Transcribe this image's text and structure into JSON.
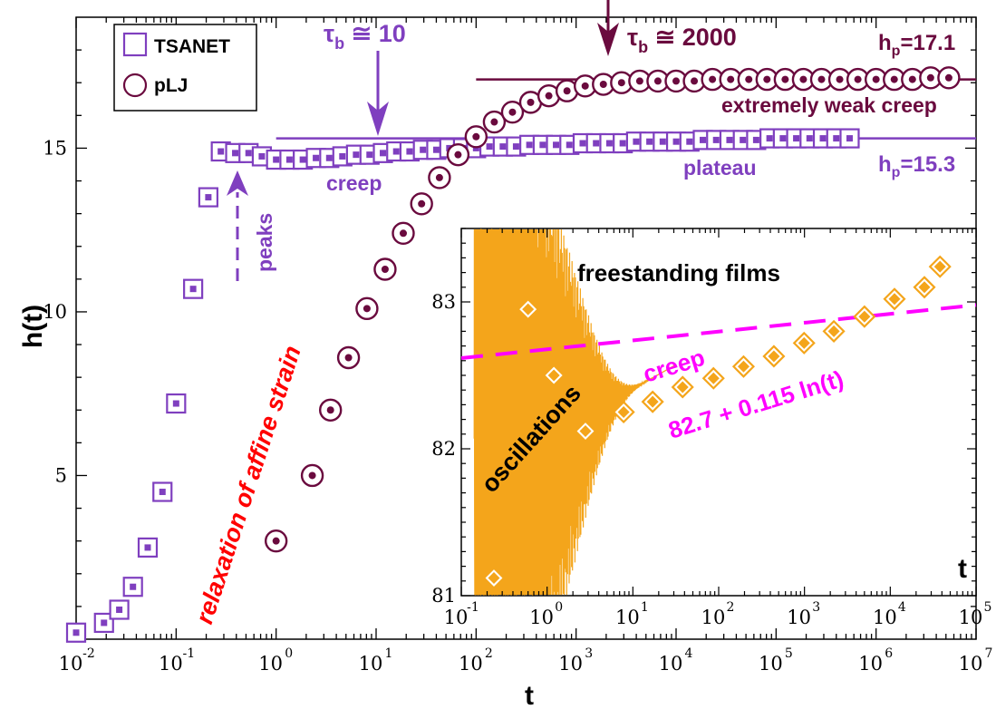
{
  "chart_data": [
    {
      "type": "scatter",
      "title": "",
      "xlabel": "t",
      "ylabel": "h(t)",
      "xscale": "log",
      "xlim": [
        0.01,
        10000000
      ],
      "ylim": [
        0,
        19
      ],
      "x_tick_labels": [
        {
          "base": "10",
          "exp": "-2",
          "v": 0.01
        },
        {
          "base": "10",
          "exp": "-1",
          "v": 0.1
        },
        {
          "base": "10",
          "exp": "0",
          "v": 1
        },
        {
          "base": "10",
          "exp": "1",
          "v": 10
        },
        {
          "base": "10",
          "exp": "2",
          "v": 100
        },
        {
          "base": "10",
          "exp": "3",
          "v": 1000
        },
        {
          "base": "10",
          "exp": "4",
          "v": 10000
        },
        {
          "base": "10",
          "exp": "5",
          "v": 100000
        },
        {
          "base": "10",
          "exp": "6",
          "v": 1000000
        },
        {
          "base": "10",
          "exp": "7",
          "v": 10000000
        }
      ],
      "y_ticks": [
        5,
        10,
        15
      ],
      "y_tick_labels": [
        "5",
        "10",
        "15"
      ],
      "legend": {
        "placement": "top-left",
        "entries": [
          {
            "label": "TSANET",
            "marker": "square",
            "color": "#7f3fbf"
          },
          {
            "label": "pLJ",
            "marker": "circle",
            "color": "#6a0a3e"
          }
        ]
      },
      "series": [
        {
          "name": "TSANET",
          "marker": "square",
          "color": "#7f3fbf",
          "x": [
            0.01,
            0.019,
            0.027,
            0.037,
            0.052,
            0.073,
            0.1,
            0.148,
            0.21,
            0.28,
            0.39,
            0.53,
            0.72,
            1.0,
            1.36,
            1.85,
            2.5,
            3.4,
            4.6,
            6.3,
            8.6,
            11.7,
            15.9,
            21.6,
            29.4,
            40,
            54,
            74,
            100,
            136,
            185,
            251,
            341,
            464,
            630,
            857,
            1165,
            1584,
            2154,
            2929,
            3983,
            5415,
            7363,
            10012,
            13613,
            18510,
            25168,
            34222,
            46533,
            63272,
            86033,
            116983,
            159068,
            216292,
            294101,
            399900,
            543756
          ],
          "values": [
            0.2,
            0.5,
            0.9,
            1.6,
            2.8,
            4.5,
            7.2,
            10.7,
            13.5,
            14.9,
            14.85,
            14.85,
            14.75,
            14.65,
            14.65,
            14.65,
            14.7,
            14.7,
            14.75,
            14.8,
            14.8,
            14.85,
            14.9,
            14.9,
            14.95,
            14.95,
            15.0,
            15.0,
            15.0,
            15.05,
            15.05,
            15.05,
            15.1,
            15.1,
            15.1,
            15.1,
            15.15,
            15.15,
            15.15,
            15.15,
            15.2,
            15.2,
            15.2,
            15.2,
            15.2,
            15.25,
            15.25,
            15.25,
            15.25,
            15.25,
            15.3,
            15.3,
            15.3,
            15.3,
            15.3,
            15.3,
            15.3
          ]
        },
        {
          "name": "pLJ",
          "marker": "circle",
          "color": "#6a0a3e",
          "x": [
            1.0,
            2.3,
            3.5,
            5.3,
            8.1,
            12.3,
            18.7,
            28.5,
            43,
            66,
            100,
            152,
            231,
            351,
            534,
            811,
            1233,
            1874,
            2848,
            4329,
            6579,
            10000,
            15199,
            23101,
            35112,
            53367,
            81113,
            123285,
            187382,
            284804,
            432876,
            657933,
            1000000,
            1519911,
            2310130,
            3511192,
            5336699
          ],
          "values": [
            3.0,
            5.0,
            7.0,
            8.6,
            10.1,
            11.3,
            12.4,
            13.3,
            14.1,
            14.8,
            15.35,
            15.8,
            16.1,
            16.4,
            16.6,
            16.75,
            16.9,
            16.95,
            17.0,
            17.05,
            17.05,
            17.05,
            17.05,
            17.1,
            17.1,
            17.1,
            17.1,
            17.1,
            17.1,
            17.1,
            17.1,
            17.1,
            17.1,
            17.1,
            17.1,
            17.15,
            17.15
          ]
        }
      ],
      "reference_lines": [
        {
          "name": "h_p TSANET plateau",
          "value": 15.3,
          "from_x": 1,
          "to_x": 10000000,
          "color": "#7f3fbf"
        },
        {
          "name": "h_p pLJ plateau",
          "value": 17.1,
          "from_x": 100,
          "to_x": 10000000,
          "color": "#6a0a3e"
        }
      ],
      "annotations": {
        "tau_tsanet_pre": "τ",
        "tau_tsanet_sub": "b",
        "tau_tsanet_post": " ≅ 10",
        "tau_plj_pre": "τ",
        "tau_plj_sub": "b",
        "tau_plj_post": " ≅ 2000",
        "hp_plj_pre": "h",
        "hp_plj_sub": "p",
        "hp_plj_post": "=17.1",
        "hp_tsanet_pre": "h",
        "hp_tsanet_sub": "p",
        "hp_tsanet_post": "=15.3",
        "extremely_weak_creep": "extremely weak creep",
        "creep": "creep",
        "plateau": "plateau",
        "peaks": "peaks",
        "relaxation_pre": "relaxation of ",
        "relaxation_post": "affine strain",
        "relaxation_color": "#ff0000"
      }
    },
    {
      "type": "line",
      "title": "freestanding films",
      "xlabel": "t",
      "ylabel": "",
      "xscale": "log",
      "xlim": [
        0.1,
        100000
      ],
      "ylim": [
        81,
        83.5
      ],
      "x_tick_labels": [
        {
          "base": "10",
          "exp": "-1",
          "v": 0.1
        },
        {
          "base": "10",
          "exp": "0",
          "v": 1
        },
        {
          "base": "10",
          "exp": "1",
          "v": 10
        },
        {
          "base": "10",
          "exp": "2",
          "v": 100
        },
        {
          "base": "10",
          "exp": "3",
          "v": 1000
        },
        {
          "base": "10",
          "exp": "4",
          "v": 10000
        },
        {
          "base": "10",
          "exp": "5",
          "v": 100000
        }
      ],
      "y_ticks": [
        81,
        82,
        83
      ],
      "y_tick_labels": [
        "81",
        "82",
        "83"
      ],
      "series": [
        {
          "name": "freestanding film h(t)",
          "marker": "diamond",
          "color": "#f4a51b",
          "x": [
            0.24,
            0.6,
            1.2,
            2.8,
            7.8,
            17,
            38,
            87,
            195,
            440,
            990,
            2200,
            5000,
            11200,
            25000,
            38000
          ],
          "values": [
            81.12,
            82.95,
            82.5,
            82.12,
            82.25,
            82.32,
            82.42,
            82.48,
            82.56,
            82.63,
            82.72,
            82.8,
            82.9,
            83.02,
            83.1,
            83.24
          ]
        }
      ],
      "fit": {
        "intercept": 82.7,
        "slope": 0.115,
        "color": "#ff00ff"
      },
      "annotations": {
        "oscillations": "oscillations",
        "creep": "creep",
        "fit_label": "82.7 + 0.115 ln(t)"
      }
    }
  ]
}
